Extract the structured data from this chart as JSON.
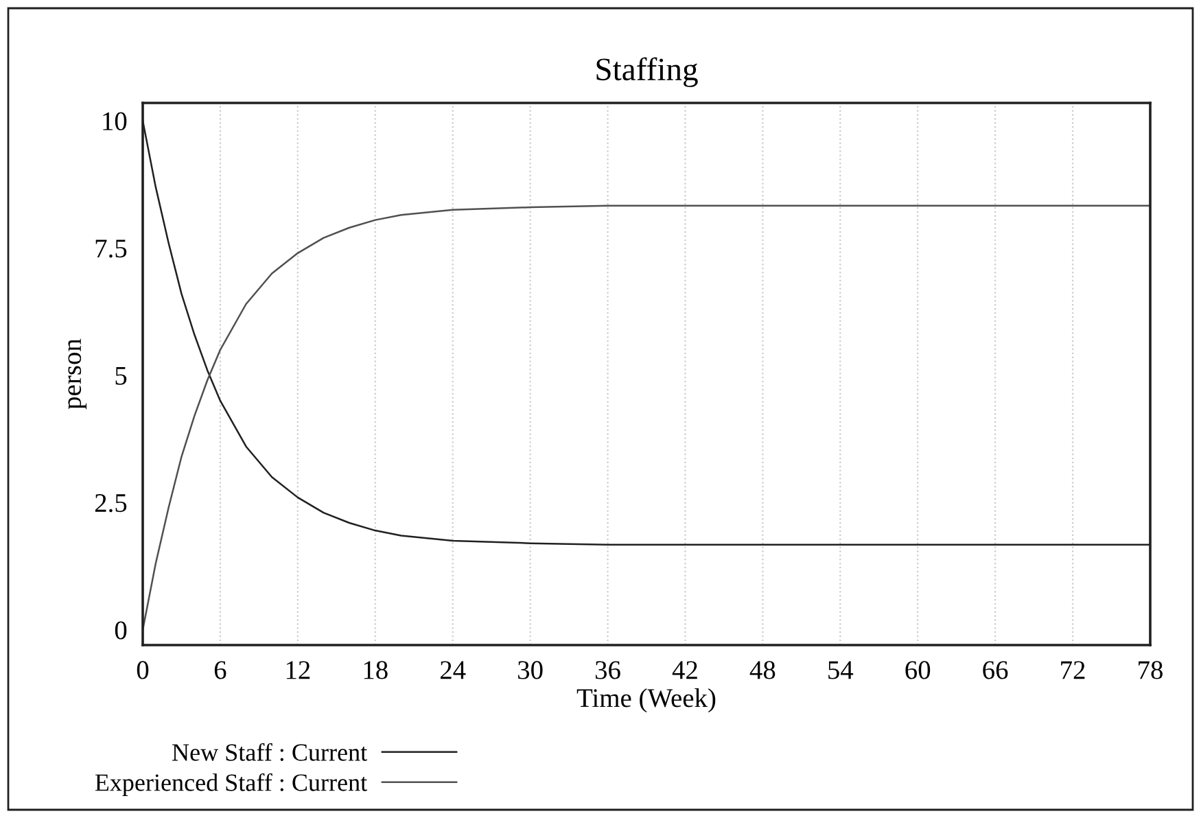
{
  "chart_data": {
    "type": "line",
    "title": "Staffing",
    "xlabel": "Time (Week)",
    "ylabel": "person",
    "x": [
      0,
      1,
      2,
      3,
      4,
      5,
      6,
      8,
      10,
      12,
      14,
      16,
      18,
      20,
      24,
      30,
      36,
      48,
      60,
      78
    ],
    "series": [
      {
        "name": "New Staff : Current",
        "color": "#202020",
        "values": [
          10,
          8.7,
          7.6,
          6.6,
          5.8,
          5.1,
          4.5,
          3.6,
          3.0,
          2.6,
          2.3,
          2.1,
          1.95,
          1.85,
          1.75,
          1.7,
          1.67,
          1.67,
          1.67,
          1.67
        ]
      },
      {
        "name": "Experienced Staff : Current",
        "color": "#505050",
        "values": [
          0,
          1.3,
          2.4,
          3.4,
          4.2,
          4.9,
          5.5,
          6.4,
          7.0,
          7.4,
          7.7,
          7.9,
          8.05,
          8.15,
          8.25,
          8.3,
          8.33,
          8.33,
          8.33,
          8.33
        ]
      }
    ],
    "xlim": [
      0,
      78
    ],
    "xticks": [
      0,
      6,
      12,
      18,
      24,
      30,
      36,
      42,
      48,
      54,
      60,
      66,
      72,
      78
    ],
    "ylim": [
      -0.3,
      10.35
    ],
    "yticks": [
      0,
      2.5,
      5,
      7.5,
      10
    ],
    "grid": "x",
    "legend": "bottom",
    "marker": "none",
    "line_style": "solid"
  }
}
